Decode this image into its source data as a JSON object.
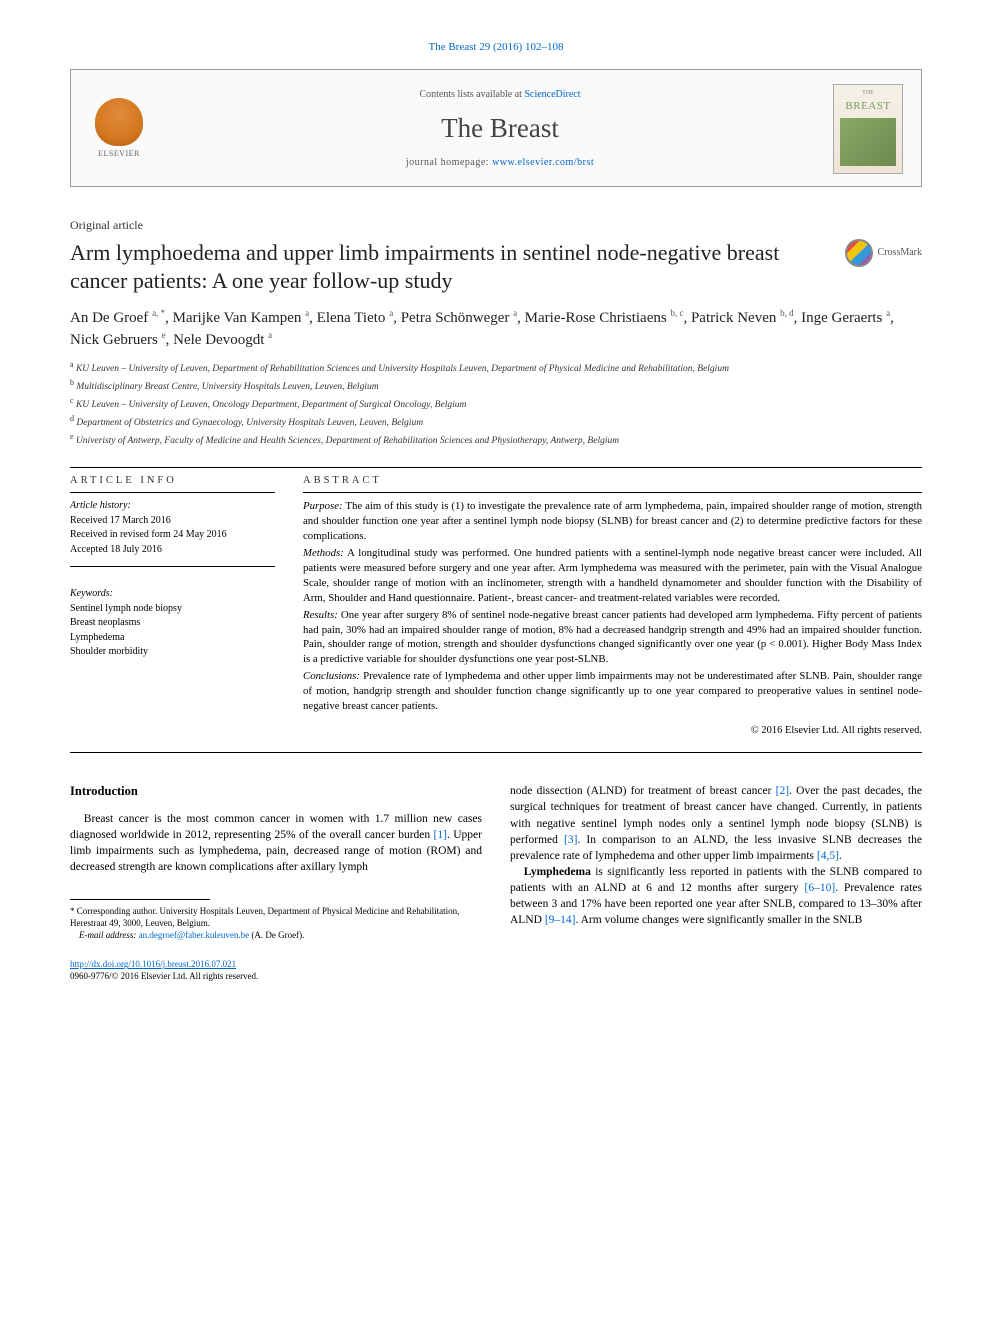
{
  "citation": "The Breast 29 (2016) 102–108",
  "header": {
    "contents_prefix": "Contents lists available at ",
    "contents_link": "ScienceDirect",
    "journal": "The Breast",
    "homepage_prefix": "journal homepage: ",
    "homepage_url": "www.elsevier.com/brst",
    "publisher": "ELSEVIER",
    "cover_small_title": "THE",
    "cover_title": "BREAST"
  },
  "article_type": "Original article",
  "title": "Arm lymphoedema and upper limb impairments in sentinel node-negative breast cancer patients: A one year follow-up study",
  "crossmark": "CrossMark",
  "authors_html": "An De Groef <sup>a, *</sup>, Marijke Van Kampen <sup>a</sup>, Elena Tieto <sup>a</sup>, Petra Schönweger <sup>a</sup>, Marie-Rose Christiaens <sup>b, c</sup>, Patrick Neven <sup>b, d</sup>, Inge Geraerts <sup>a</sup>, Nick Gebruers <sup>e</sup>, Nele Devoogdt <sup>a</sup>",
  "affiliations": [
    {
      "key": "a",
      "text": "KU Leuven – University of Leuven, Department of Rehabilitation Sciences and University Hospitals Leuven, Department of Physical Medicine and Rehabilitation, Belgium"
    },
    {
      "key": "b",
      "text": "Multidisciplinary Breast Centre, University Hospitals Leuven, Leuven, Belgium"
    },
    {
      "key": "c",
      "text": "KU Leuven – University of Leuven, Oncology Department, Department of Surgical Oncology, Belgium"
    },
    {
      "key": "d",
      "text": "Department of Obstetrics and Gynaecology, University Hospitals Leuven, Leuven, Belgium"
    },
    {
      "key": "e",
      "text": "Univeristy of Antwerp, Faculty of Medicine and Health Sciences, Department of Rehabilitation Sciences and Physiotherapy, Antwerp, Belgium"
    }
  ],
  "article_info": {
    "heading": "ARTICLE INFO",
    "history_label": "Article history:",
    "received": "Received 17 March 2016",
    "revised": "Received in revised form 24 May 2016",
    "accepted": "Accepted 18 July 2016",
    "keywords_label": "Keywords:",
    "keywords": [
      "Sentinel lymph node biopsy",
      "Breast neoplasms",
      "Lymphedema",
      "Shoulder morbidity"
    ]
  },
  "abstract": {
    "heading": "ABSTRACT",
    "purpose_label": "Purpose:",
    "purpose": " The aim of this study is (1) to investigate the prevalence rate of arm lymphedema, pain, impaired shoulder range of motion, strength and shoulder function one year after a sentinel lymph node biopsy (SLNB) for breast cancer and (2) to determine predictive factors for these complications.",
    "methods_label": "Methods:",
    "methods": " A longitudinal study was performed. One hundred patients with a sentinel-lymph node negative breast cancer were included. All patients were measured before surgery and one year after. Arm lymphedema was measured with the perimeter, pain with the Visual Analogue Scale, shoulder range of motion with an inclinometer, strength with a handheld dynamometer and shoulder function with the Disability of Arm, Shoulder and Hand questionnaire. Patient-, breast cancer- and treatment-related variables were recorded.",
    "results_label": "Results:",
    "results": " One year after surgery 8% of sentinel node-negative breast cancer patients had developed arm lymphedema. Fifty percent of patients had pain, 30% had an impaired shoulder range of motion, 8% had a decreased handgrip strength and 49% had an impaired shoulder function. Pain, shoulder range of motion, strength and shoulder dysfunctions changed significantly over one year (p < 0.001). Higher Body Mass Index is a predictive variable for shoulder dysfunctions one year post-SLNB.",
    "conclusions_label": "Conclusions:",
    "conclusions": " Prevalence rate of lymphedema and other upper limb impairments may not be underestimated after SLNB. Pain, shoulder range of motion, handgrip strength and shoulder function change significantly up to one year compared to preoperative values in sentinel node-negative breast cancer patients.",
    "copyright": "© 2016 Elsevier Ltd. All rights reserved."
  },
  "introduction": {
    "heading": "Introduction",
    "p1_pre": "Breast cancer is the most common cancer in women with 1.7 million new cases diagnosed worldwide in 2012, representing 25% of the overall cancer burden ",
    "ref1": "[1]",
    "p1_post": ". Upper limb impairments such as lymphedema, pain, decreased range of motion (ROM) and decreased strength are known complications after axillary lymph",
    "p2_a": "node dissection (ALND) for treatment of breast cancer ",
    "ref2": "[2]",
    "p2_b": ". Over the past decades, the surgical techniques for treatment of breast cancer have changed. Currently, in patients with negative sentinel lymph nodes only a sentinel lymph node biopsy (SLNB) is performed ",
    "ref3": "[3]",
    "p2_c": ". In comparison to an ALND, the less invasive SLNB decreases the prevalence rate of lymphedema and other upper limb impairments ",
    "ref45": "[4,5]",
    "p2_d": ".",
    "p3_bold": "Lymphedema",
    "p3_a": " is significantly less reported in patients with the SLNB compared to patients with an ALND at 6 and 12 months after surgery ",
    "ref610": "[6–10]",
    "p3_b": ". Prevalence rates between 3 and 17% have been reported one year after SNLB, compared to 13–30% after ALND ",
    "ref914": "[9–14]",
    "p3_c": ". Arm volume changes were significantly smaller in the SNLB"
  },
  "footnote": {
    "corr_label": "* Corresponding author. ",
    "corr_text": "University Hospitals Leuven, Department of Physical Medicine and Rehabilitation, Herestraat 49, 3000, Leuven, Belgium.",
    "email_label": "E-mail address:",
    "email": "an.degroef@faber.kuleuven.be",
    "email_author": " (A. De Groef)."
  },
  "footer": {
    "doi": "http://dx.doi.org/10.1016/j.breast.2016.07.021",
    "issn_line": "0960-9776/© 2016 Elsevier Ltd. All rights reserved."
  },
  "colors": {
    "link": "#0066cc",
    "text": "#000000",
    "muted": "#555555",
    "border": "#999999"
  }
}
